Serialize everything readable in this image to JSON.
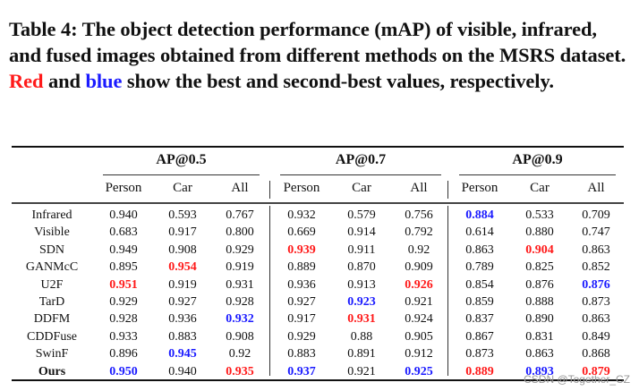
{
  "caption": {
    "prefix": "Table 4: The object detection performance (mAP) of visible, infrared, and fused images obtained from different methods on the MSRS dataset. ",
    "red_word": "Red",
    "middle": " and ",
    "blue_word": "blue",
    "suffix": " show the best and second-best values, respectively."
  },
  "groups": [
    "AP@0.5",
    "AP@0.7",
    "AP@0.9"
  ],
  "columns": [
    "Person",
    "Car",
    "All",
    "Person",
    "Car",
    "All",
    "Person",
    "Car",
    "All"
  ],
  "colors": {
    "best": "#ff1a1a",
    "second": "#1a1aff"
  },
  "rows": [
    {
      "method": "Infrared",
      "values": [
        "0.940",
        "0.593",
        "0.767",
        "0.932",
        "0.579",
        "0.756",
        "0.884",
        "0.533",
        "0.709"
      ],
      "marks": [
        "",
        "",
        "",
        "",
        "",
        "",
        "second",
        "",
        ""
      ]
    },
    {
      "method": "Visible",
      "values": [
        "0.683",
        "0.917",
        "0.800",
        "0.669",
        "0.914",
        "0.792",
        "0.614",
        "0.880",
        "0.747"
      ],
      "marks": [
        "",
        "",
        "",
        "",
        "",
        "",
        "",
        "",
        ""
      ]
    },
    {
      "method": "SDN",
      "values": [
        "0.949",
        "0.908",
        "0.929",
        "0.939",
        "0.911",
        "0.92",
        "0.863",
        "0.904",
        "0.863"
      ],
      "marks": [
        "",
        "",
        "",
        "best",
        "",
        "",
        "",
        "best",
        ""
      ]
    },
    {
      "method": "GANMcC",
      "values": [
        "0.895",
        "0.954",
        "0.919",
        "0.889",
        "0.870",
        "0.909",
        "0.789",
        "0.825",
        "0.852"
      ],
      "marks": [
        "",
        "best",
        "",
        "",
        "",
        "",
        "",
        "",
        ""
      ]
    },
    {
      "method": "U2F",
      "values": [
        "0.951",
        "0.919",
        "0.931",
        "0.936",
        "0.913",
        "0.926",
        "0.854",
        "0.876",
        "0.876"
      ],
      "marks": [
        "best",
        "",
        "",
        "",
        "",
        "best",
        "",
        "",
        "second"
      ]
    },
    {
      "method": "TarD",
      "values": [
        "0.929",
        "0.927",
        "0.928",
        "0.927",
        "0.923",
        "0.921",
        "0.859",
        "0.888",
        "0.873"
      ],
      "marks": [
        "",
        "",
        "",
        "",
        "second",
        "",
        "",
        "",
        ""
      ]
    },
    {
      "method": "DDFM",
      "values": [
        "0.928",
        "0.936",
        "0.932",
        "0.917",
        "0.931",
        "0.924",
        "0.837",
        "0.890",
        "0.863"
      ],
      "marks": [
        "",
        "",
        "second",
        "",
        "best",
        "",
        "",
        "",
        ""
      ]
    },
    {
      "method": "CDDFuse",
      "values": [
        "0.933",
        "0.883",
        "0.908",
        "0.929",
        "0.88",
        "0.905",
        "0.867",
        "0.831",
        "0.849"
      ],
      "marks": [
        "",
        "",
        "",
        "",
        "",
        "",
        "",
        "",
        ""
      ]
    },
    {
      "method": "SwinF",
      "values": [
        "0.896",
        "0.945",
        "0.92",
        "0.883",
        "0.891",
        "0.912",
        "0.873",
        "0.863",
        "0.868"
      ],
      "marks": [
        "",
        "second",
        "",
        "",
        "",
        "",
        "",
        "",
        ""
      ]
    },
    {
      "method": "Ours",
      "values": [
        "0.950",
        "0.940",
        "0.935",
        "0.937",
        "0.921",
        "0.925",
        "0.889",
        "0.893",
        "0.879"
      ],
      "marks": [
        "second",
        "",
        "best",
        "second",
        "",
        "second",
        "best",
        "second",
        "best"
      ]
    }
  ],
  "watermark": "CSDN @Together_CZ"
}
